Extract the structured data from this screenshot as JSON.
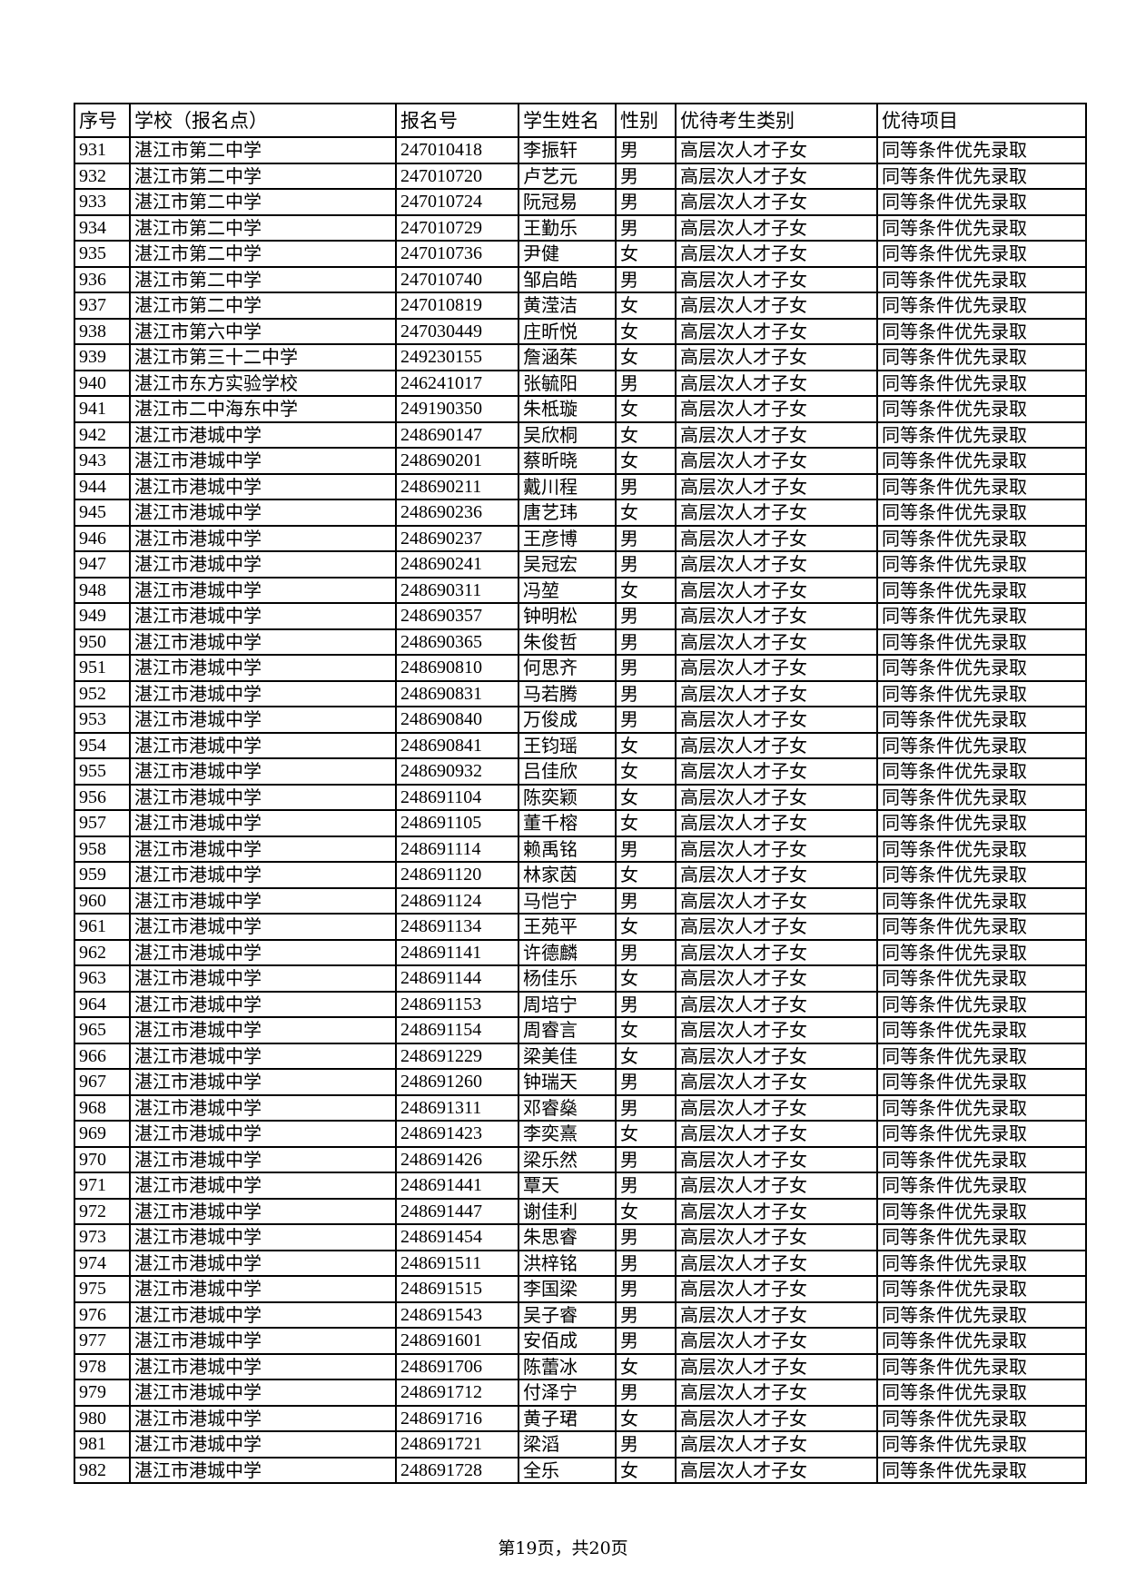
{
  "table": {
    "headers": [
      "序号",
      "学校（报名点）",
      "报名号",
      "学生姓名",
      "性别",
      "优待考生类别",
      "优待项目"
    ],
    "rows": [
      [
        "931",
        "湛江市第二中学",
        "247010418",
        "李振轩",
        "男",
        "高层次人才子女",
        "同等条件优先录取"
      ],
      [
        "932",
        "湛江市第二中学",
        "247010720",
        "卢艺元",
        "男",
        "高层次人才子女",
        "同等条件优先录取"
      ],
      [
        "933",
        "湛江市第二中学",
        "247010724",
        "阮冠易",
        "男",
        "高层次人才子女",
        "同等条件优先录取"
      ],
      [
        "934",
        "湛江市第二中学",
        "247010729",
        "王勤乐",
        "男",
        "高层次人才子女",
        "同等条件优先录取"
      ],
      [
        "935",
        "湛江市第二中学",
        "247010736",
        "尹健",
        "女",
        "高层次人才子女",
        "同等条件优先录取"
      ],
      [
        "936",
        "湛江市第二中学",
        "247010740",
        "邹启皓",
        "男",
        "高层次人才子女",
        "同等条件优先录取"
      ],
      [
        "937",
        "湛江市第二中学",
        "247010819",
        "黄滢洁",
        "女",
        "高层次人才子女",
        "同等条件优先录取"
      ],
      [
        "938",
        "湛江市第六中学",
        "247030449",
        "庄昕悦",
        "女",
        "高层次人才子女",
        "同等条件优先录取"
      ],
      [
        "939",
        "湛江市第三十二中学",
        "249230155",
        "詹涵茱",
        "女",
        "高层次人才子女",
        "同等条件优先录取"
      ],
      [
        "940",
        "湛江市东方实验学校",
        "246241017",
        "张毓阳",
        "男",
        "高层次人才子女",
        "同等条件优先录取"
      ],
      [
        "941",
        "湛江市二中海东中学",
        "249190350",
        "朱柢璇",
        "女",
        "高层次人才子女",
        "同等条件优先录取"
      ],
      [
        "942",
        "湛江市港城中学",
        "248690147",
        "吴欣桐",
        "女",
        "高层次人才子女",
        "同等条件优先录取"
      ],
      [
        "943",
        "湛江市港城中学",
        "248690201",
        "蔡昕晓",
        "女",
        "高层次人才子女",
        "同等条件优先录取"
      ],
      [
        "944",
        "湛江市港城中学",
        "248690211",
        "戴川程",
        "男",
        "高层次人才子女",
        "同等条件优先录取"
      ],
      [
        "945",
        "湛江市港城中学",
        "248690236",
        "唐艺玮",
        "女",
        "高层次人才子女",
        "同等条件优先录取"
      ],
      [
        "946",
        "湛江市港城中学",
        "248690237",
        "王彦博",
        "男",
        "高层次人才子女",
        "同等条件优先录取"
      ],
      [
        "947",
        "湛江市港城中学",
        "248690241",
        "吴冠宏",
        "男",
        "高层次人才子女",
        "同等条件优先录取"
      ],
      [
        "948",
        "湛江市港城中学",
        "248690311",
        "冯堃",
        "女",
        "高层次人才子女",
        "同等条件优先录取"
      ],
      [
        "949",
        "湛江市港城中学",
        "248690357",
        "钟明松",
        "男",
        "高层次人才子女",
        "同等条件优先录取"
      ],
      [
        "950",
        "湛江市港城中学",
        "248690365",
        "朱俊哲",
        "男",
        "高层次人才子女",
        "同等条件优先录取"
      ],
      [
        "951",
        "湛江市港城中学",
        "248690810",
        "何思齐",
        "男",
        "高层次人才子女",
        "同等条件优先录取"
      ],
      [
        "952",
        "湛江市港城中学",
        "248690831",
        "马若腾",
        "男",
        "高层次人才子女",
        "同等条件优先录取"
      ],
      [
        "953",
        "湛江市港城中学",
        "248690840",
        "万俊成",
        "男",
        "高层次人才子女",
        "同等条件优先录取"
      ],
      [
        "954",
        "湛江市港城中学",
        "248690841",
        "王钧瑶",
        "女",
        "高层次人才子女",
        "同等条件优先录取"
      ],
      [
        "955",
        "湛江市港城中学",
        "248690932",
        "吕佳欣",
        "女",
        "高层次人才子女",
        "同等条件优先录取"
      ],
      [
        "956",
        "湛江市港城中学",
        "248691104",
        "陈奕颖",
        "女",
        "高层次人才子女",
        "同等条件优先录取"
      ],
      [
        "957",
        "湛江市港城中学",
        "248691105",
        "董千榕",
        "女",
        "高层次人才子女",
        "同等条件优先录取"
      ],
      [
        "958",
        "湛江市港城中学",
        "248691114",
        "赖禹铭",
        "男",
        "高层次人才子女",
        "同等条件优先录取"
      ],
      [
        "959",
        "湛江市港城中学",
        "248691120",
        "林家茵",
        "女",
        "高层次人才子女",
        "同等条件优先录取"
      ],
      [
        "960",
        "湛江市港城中学",
        "248691124",
        "马恺宁",
        "男",
        "高层次人才子女",
        "同等条件优先录取"
      ],
      [
        "961",
        "湛江市港城中学",
        "248691134",
        "王苑平",
        "女",
        "高层次人才子女",
        "同等条件优先录取"
      ],
      [
        "962",
        "湛江市港城中学",
        "248691141",
        "许德麟",
        "男",
        "高层次人才子女",
        "同等条件优先录取"
      ],
      [
        "963",
        "湛江市港城中学",
        "248691144",
        "杨佳乐",
        "女",
        "高层次人才子女",
        "同等条件优先录取"
      ],
      [
        "964",
        "湛江市港城中学",
        "248691153",
        "周培宁",
        "男",
        "高层次人才子女",
        "同等条件优先录取"
      ],
      [
        "965",
        "湛江市港城中学",
        "248691154",
        "周睿言",
        "女",
        "高层次人才子女",
        "同等条件优先录取"
      ],
      [
        "966",
        "湛江市港城中学",
        "248691229",
        "梁美佳",
        "女",
        "高层次人才子女",
        "同等条件优先录取"
      ],
      [
        "967",
        "湛江市港城中学",
        "248691260",
        "钟瑞天",
        "男",
        "高层次人才子女",
        "同等条件优先录取"
      ],
      [
        "968",
        "湛江市港城中学",
        "248691311",
        "邓睿燊",
        "男",
        "高层次人才子女",
        "同等条件优先录取"
      ],
      [
        "969",
        "湛江市港城中学",
        "248691423",
        "李奕熹",
        "女",
        "高层次人才子女",
        "同等条件优先录取"
      ],
      [
        "970",
        "湛江市港城中学",
        "248691426",
        "梁乐然",
        "男",
        "高层次人才子女",
        "同等条件优先录取"
      ],
      [
        "971",
        "湛江市港城中学",
        "248691441",
        "覃天",
        "男",
        "高层次人才子女",
        "同等条件优先录取"
      ],
      [
        "972",
        "湛江市港城中学",
        "248691447",
        "谢佳利",
        "女",
        "高层次人才子女",
        "同等条件优先录取"
      ],
      [
        "973",
        "湛江市港城中学",
        "248691454",
        "朱思睿",
        "男",
        "高层次人才子女",
        "同等条件优先录取"
      ],
      [
        "974",
        "湛江市港城中学",
        "248691511",
        "洪梓铭",
        "男",
        "高层次人才子女",
        "同等条件优先录取"
      ],
      [
        "975",
        "湛江市港城中学",
        "248691515",
        "李国梁",
        "男",
        "高层次人才子女",
        "同等条件优先录取"
      ],
      [
        "976",
        "湛江市港城中学",
        "248691543",
        "吴子睿",
        "男",
        "高层次人才子女",
        "同等条件优先录取"
      ],
      [
        "977",
        "湛江市港城中学",
        "248691601",
        "安佰成",
        "男",
        "高层次人才子女",
        "同等条件优先录取"
      ],
      [
        "978",
        "湛江市港城中学",
        "248691706",
        "陈蕾冰",
        "女",
        "高层次人才子女",
        "同等条件优先录取"
      ],
      [
        "979",
        "湛江市港城中学",
        "248691712",
        "付泽宁",
        "男",
        "高层次人才子女",
        "同等条件优先录取"
      ],
      [
        "980",
        "湛江市港城中学",
        "248691716",
        "黄子珺",
        "女",
        "高层次人才子女",
        "同等条件优先录取"
      ],
      [
        "981",
        "湛江市港城中学",
        "248691721",
        "梁滔",
        "男",
        "高层次人才子女",
        "同等条件优先录取"
      ],
      [
        "982",
        "湛江市港城中学",
        "248691728",
        "全乐",
        "女",
        "高层次人才子女",
        "同等条件优先录取"
      ]
    ]
  },
  "footer": {
    "page_label": "第19页，共20页"
  }
}
